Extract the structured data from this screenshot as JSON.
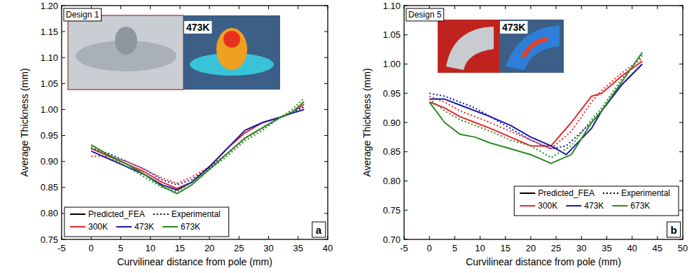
{
  "chart_data": [
    {
      "type": "line",
      "panel_label": "a",
      "annotations": [
        "Design 1",
        "473K"
      ],
      "x_label": "Curvilinear distance from pole (mm)",
      "y_label": "Average Thickness (mm)",
      "xlim": [
        -5,
        40
      ],
      "xticks": [
        -5,
        0,
        5,
        10,
        15,
        20,
        25,
        30,
        35,
        40
      ],
      "ylim": [
        0.75,
        1.2
      ],
      "yticks": [
        0.75,
        {
          "value": 0.8,
          "label": "0.80"
        },
        0.85,
        {
          "value": 0.9,
          "label": "0.90"
        },
        0.95,
        {
          "value": 1.0,
          "label": "1.00"
        },
        1.05,
        {
          "value": 1.1,
          "label": "1.10"
        },
        1.15,
        {
          "value": 1.2,
          "label": "1.20"
        }
      ],
      "grid": false,
      "legend": "lower left",
      "legend_styles": [
        {
          "name": "Predicted_FEA",
          "line_style": "solid"
        },
        {
          "name": "Experimental",
          "line_style": "dotted"
        }
      ],
      "series": [
        {
          "name": "300K",
          "color": "#e8262a",
          "line_style": "solid",
          "x": [
            0,
            3,
            6,
            9,
            12,
            14.5,
            17,
            20,
            23,
            26,
            29,
            32,
            34,
            36
          ],
          "values": [
            0.925,
            0.91,
            0.895,
            0.88,
            0.86,
            0.848,
            0.86,
            0.89,
            0.925,
            0.955,
            0.975,
            0.985,
            0.995,
            1.01
          ]
        },
        {
          "name": "300K",
          "color": "#e8262a",
          "line_style": "dotted",
          "x": [
            0,
            3,
            6,
            9,
            12,
            14.5,
            17,
            20,
            23,
            26,
            29,
            32,
            34,
            36
          ],
          "values": [
            0.91,
            0.91,
            0.9,
            0.885,
            0.868,
            0.858,
            0.87,
            0.89,
            0.915,
            0.945,
            0.965,
            0.985,
            0.995,
            1.005
          ]
        },
        {
          "name": "473K",
          "color": "#1a1aa6",
          "line_style": "solid",
          "x": [
            0,
            3,
            6,
            9,
            12,
            14.5,
            17,
            20,
            23,
            26,
            29,
            32,
            34,
            36
          ],
          "values": [
            0.92,
            0.905,
            0.89,
            0.875,
            0.855,
            0.845,
            0.86,
            0.89,
            0.925,
            0.96,
            0.975,
            0.985,
            0.993,
            1.0
          ]
        },
        {
          "name": "473K",
          "color": "#1a1aa6",
          "line_style": "dotted",
          "x": [
            0,
            3,
            6,
            9,
            12,
            14.5,
            17,
            20,
            23,
            26,
            29,
            32,
            34,
            36
          ],
          "values": [
            0.925,
            0.915,
            0.9,
            0.885,
            0.865,
            0.855,
            0.865,
            0.888,
            0.915,
            0.945,
            0.965,
            0.985,
            0.995,
            1.005
          ]
        },
        {
          "name": "673K",
          "color": "#2a8a1e",
          "line_style": "solid",
          "x": [
            0,
            3,
            6,
            9,
            12,
            14.5,
            17,
            20,
            23,
            26,
            29,
            32,
            34,
            36
          ],
          "values": [
            0.932,
            0.912,
            0.895,
            0.875,
            0.852,
            0.838,
            0.855,
            0.885,
            0.915,
            0.945,
            0.965,
            0.985,
            0.995,
            1.015
          ]
        },
        {
          "name": "673K",
          "color": "#2a8a1e",
          "line_style": "dotted",
          "x": [
            0,
            3,
            6,
            9,
            12,
            14.5,
            17,
            20,
            23,
            26,
            29,
            32,
            34,
            36
          ],
          "values": [
            0.928,
            0.91,
            0.89,
            0.87,
            0.85,
            0.842,
            0.86,
            0.885,
            0.91,
            0.94,
            0.96,
            0.985,
            1.0,
            1.022
          ]
        }
      ]
    },
    {
      "type": "line",
      "panel_label": "b",
      "annotations": [
        "Design 5",
        "473K"
      ],
      "x_label": "Curvilinear distance from pole (mm)",
      "y_label": "Average Thickness (mm)",
      "xlim": [
        -5,
        50
      ],
      "xticks": [
        -5,
        0,
        5,
        10,
        15,
        20,
        25,
        30,
        35,
        40,
        45,
        50
      ],
      "ylim": [
        0.7,
        1.1
      ],
      "yticks": [
        {
          "value": 0.7,
          "label": "0.70"
        },
        0.75,
        {
          "value": 0.8,
          "label": "0.80"
        },
        0.85,
        {
          "value": 0.9,
          "label": "0.90"
        },
        0.95,
        {
          "value": 1.0,
          "label": "1.00"
        },
        1.05,
        {
          "value": 1.1,
          "label": "1.10"
        }
      ],
      "grid": false,
      "legend": "lower right",
      "legend_styles": [
        {
          "name": "Predicted_FEA",
          "line_style": "solid"
        },
        {
          "name": "Experimental",
          "line_style": "dotted"
        }
      ],
      "series": [
        {
          "name": "300K",
          "color": "#e8262a",
          "line_style": "solid",
          "x": [
            0,
            3,
            6,
            9,
            12,
            16,
            20,
            24,
            28,
            32,
            34,
            38,
            42
          ],
          "values": [
            0.935,
            0.925,
            0.91,
            0.9,
            0.89,
            0.875,
            0.86,
            0.86,
            0.9,
            0.945,
            0.95,
            0.98,
            1.005
          ]
        },
        {
          "name": "300K",
          "color": "#e8262a",
          "line_style": "dotted",
          "x": [
            0,
            3,
            6,
            9,
            12,
            16,
            20,
            24,
            28,
            32,
            34,
            38,
            42
          ],
          "values": [
            0.945,
            0.935,
            0.92,
            0.91,
            0.9,
            0.885,
            0.87,
            0.855,
            0.885,
            0.935,
            0.955,
            0.985,
            1.01
          ]
        },
        {
          "name": "473K",
          "color": "#1a1aa6",
          "line_style": "solid",
          "x": [
            0,
            3,
            6,
            9,
            12,
            16,
            20,
            24,
            27,
            32,
            34,
            38,
            42
          ],
          "values": [
            0.94,
            0.94,
            0.93,
            0.92,
            0.91,
            0.895,
            0.875,
            0.86,
            0.845,
            0.89,
            0.92,
            0.965,
            1.0
          ]
        },
        {
          "name": "473K",
          "color": "#1a1aa6",
          "line_style": "dotted",
          "x": [
            0,
            3,
            6,
            9,
            12,
            16,
            20,
            24,
            27,
            32,
            34,
            38,
            42
          ],
          "values": [
            0.95,
            0.945,
            0.935,
            0.925,
            0.91,
            0.89,
            0.87,
            0.855,
            0.86,
            0.9,
            0.92,
            0.965,
            1.0
          ]
        },
        {
          "name": "673K",
          "color": "#2a8a1e",
          "line_style": "solid",
          "x": [
            0,
            3,
            6,
            9,
            12,
            16,
            20,
            24,
            28,
            32,
            34,
            38,
            42
          ],
          "values": [
            0.935,
            0.9,
            0.88,
            0.875,
            0.865,
            0.855,
            0.845,
            0.83,
            0.845,
            0.9,
            0.92,
            0.97,
            1.02
          ]
        },
        {
          "name": "673K",
          "color": "#2a8a1e",
          "line_style": "dotted",
          "x": [
            0,
            3,
            6,
            9,
            12,
            16,
            20,
            24,
            28,
            32,
            34,
            38,
            42
          ],
          "values": [
            0.94,
            0.92,
            0.905,
            0.895,
            0.885,
            0.87,
            0.86,
            0.84,
            0.86,
            0.905,
            0.925,
            0.975,
            1.015
          ]
        }
      ]
    }
  ]
}
